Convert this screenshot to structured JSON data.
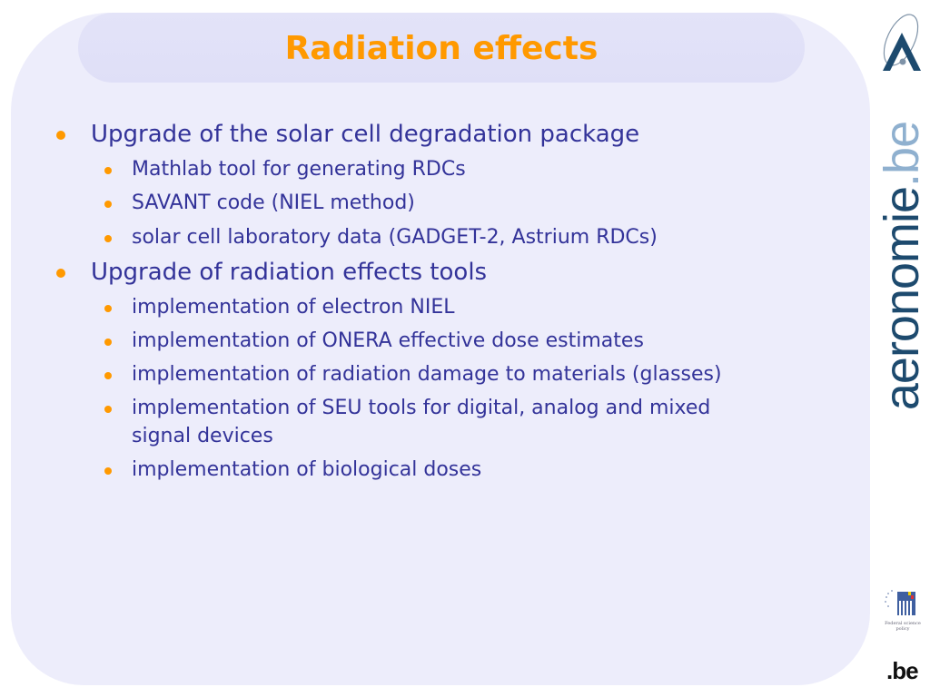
{
  "slide": {
    "title": "Radiation effects",
    "items": [
      {
        "text": "Upgrade of the solar cell degradation package",
        "level": 1
      },
      {
        "text": "Mathlab tool for generating RDCs",
        "level": 2
      },
      {
        "text": "SAVANT code (NIEL method)",
        "level": 2
      },
      {
        "text": "solar cell laboratory data (GADGET-2, Astrium RDCs)",
        "level": 2
      },
      {
        "text": "Upgrade of radiation effects tools",
        "level": 1
      },
      {
        "text": "implementation of electron NIEL",
        "level": 2
      },
      {
        "text": "implementation of ONERA effective dose estimates",
        "level": 2
      },
      {
        "text": "implementation of radiation damage to materials (glasses)",
        "level": 2
      },
      {
        "text": "implementation of SEU tools for digital, analog and mixed",
        "text2": "signal devices",
        "level": 2
      },
      {
        "text": "implementation of biological doses",
        "level": 2
      }
    ]
  },
  "branding": {
    "site_logo": "aeronomie.be",
    "site_logo_main": "aeronomie",
    "site_logo_suffix": ".be",
    "belspo_caption": "Federal science policy",
    "be_logo": ".be"
  },
  "colors": {
    "accent": "#ff9900",
    "text": "#333399",
    "panel": "#ededfb",
    "logo_blue": "#1d4a6e"
  }
}
